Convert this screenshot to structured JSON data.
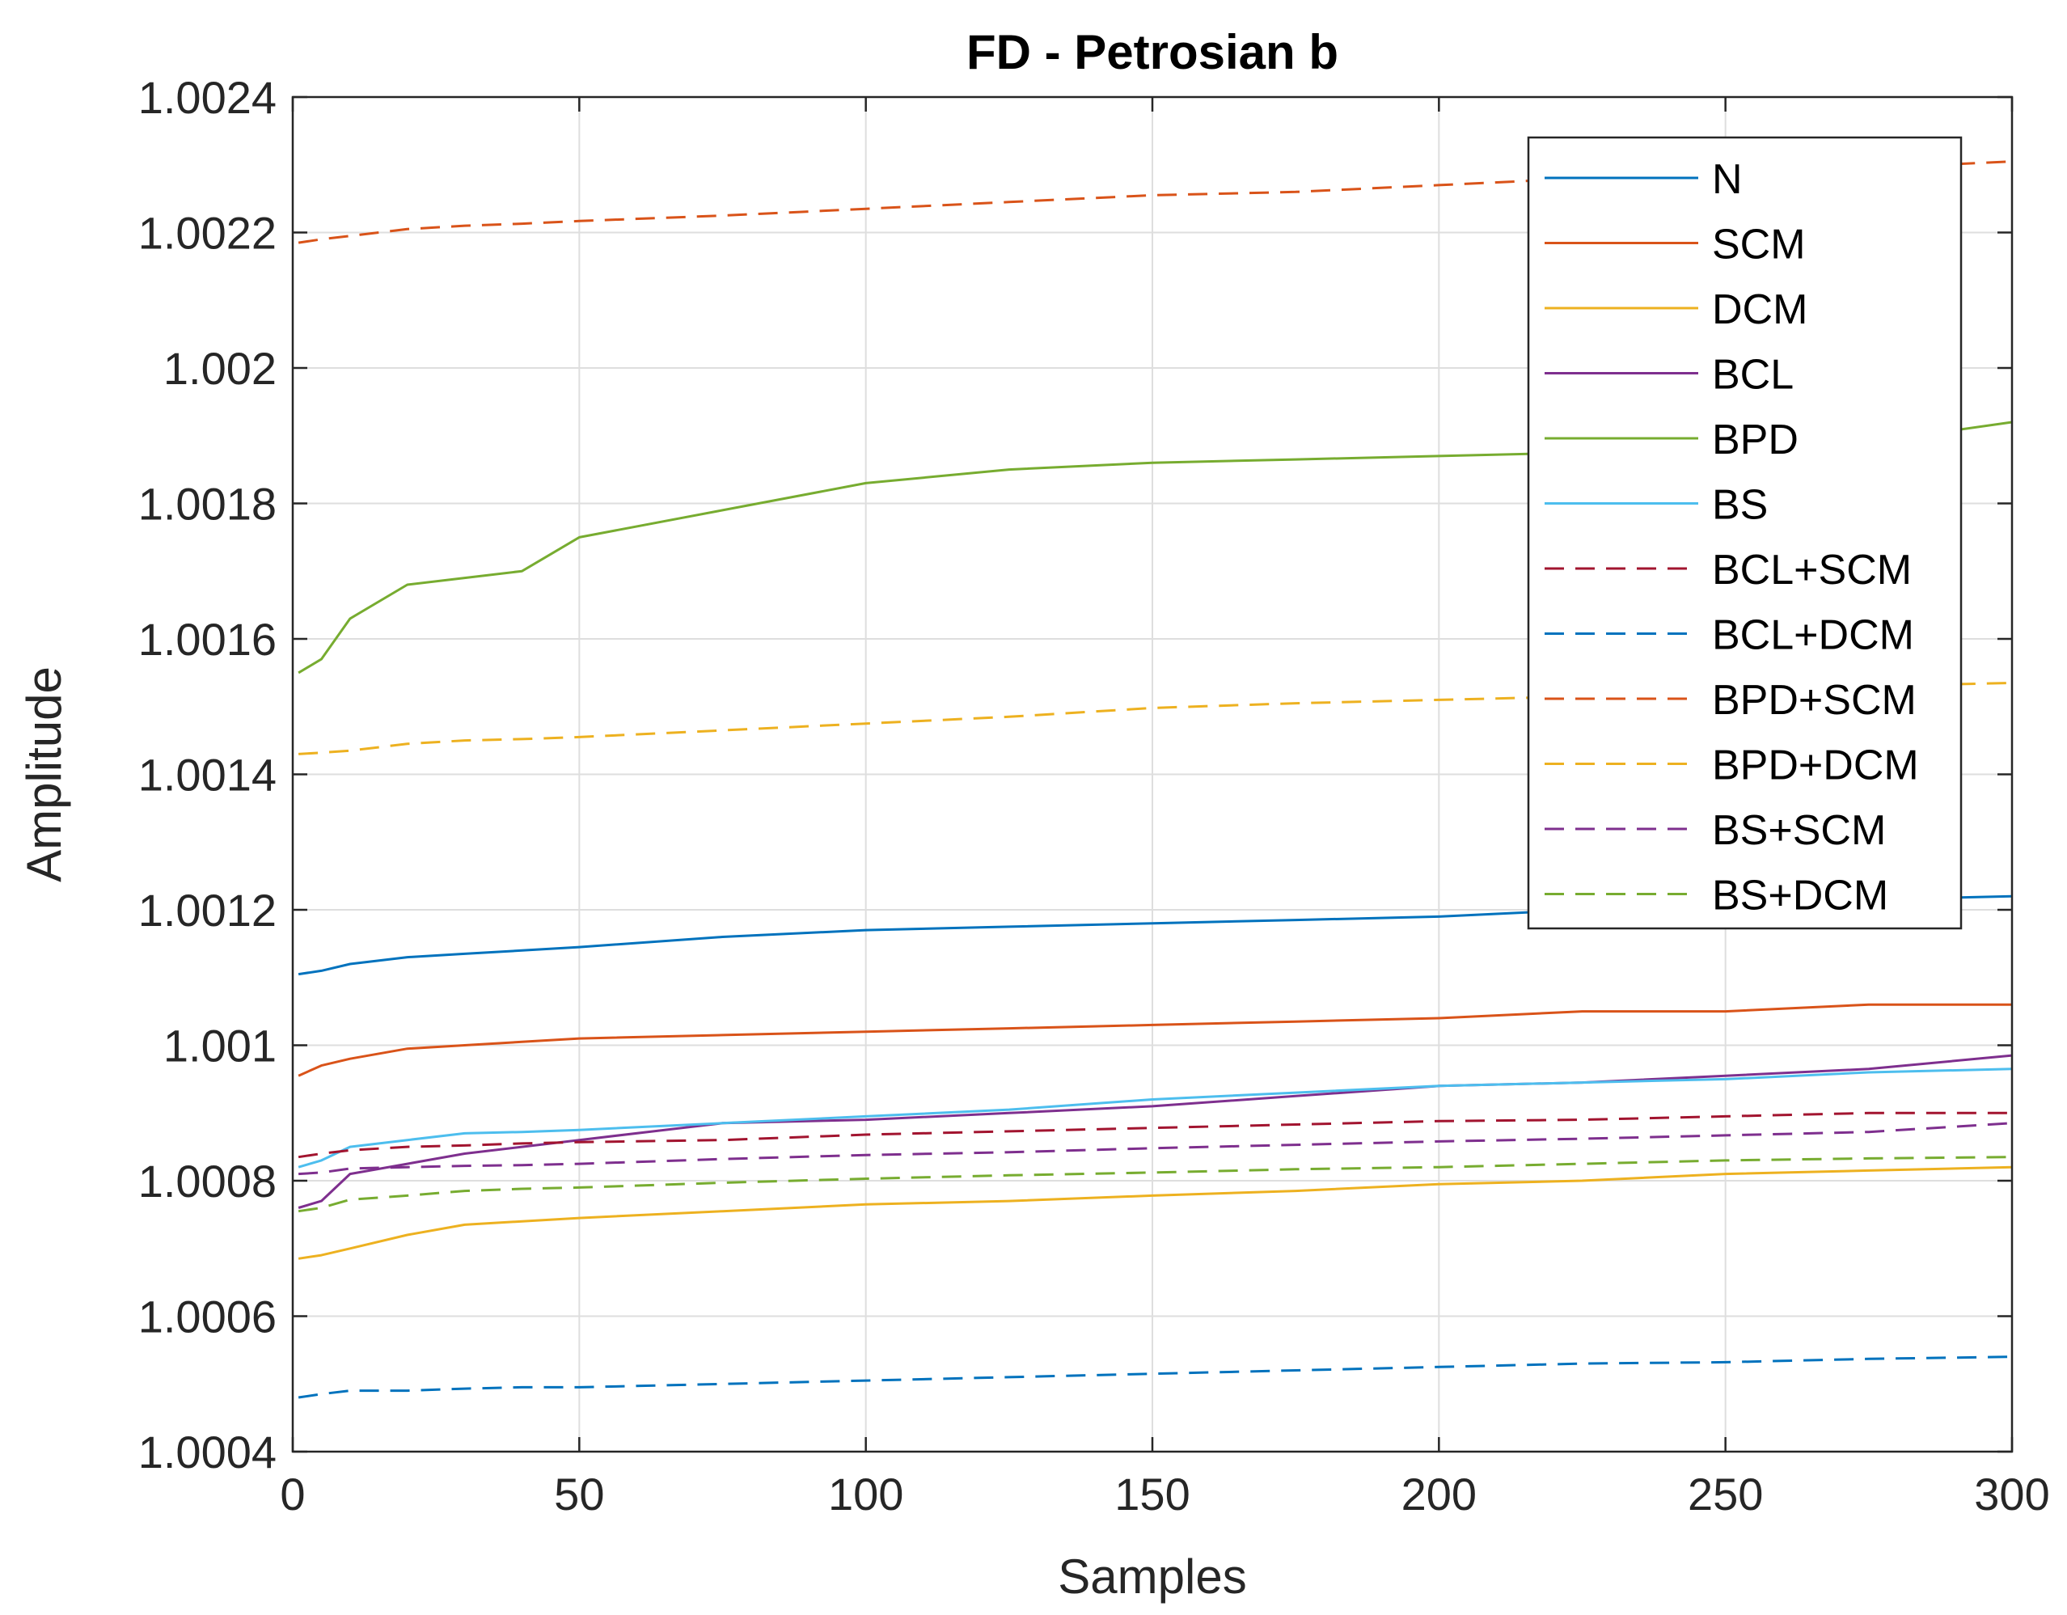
{
  "chart_data": {
    "type": "line",
    "title": "FD - Petrosian b",
    "xlabel": "Samples",
    "ylabel": "Amplitude",
    "xlim": [
      0,
      300
    ],
    "ylim": [
      1.0004,
      1.0024
    ],
    "grid": true,
    "legend_position": "top-right",
    "x_ticks": [
      "0",
      "50",
      "100",
      "150",
      "200",
      "250",
      "300"
    ],
    "y_ticks": [
      "1.0004",
      "1.0006",
      "1.0008",
      "1.001",
      "1.0012",
      "1.0014",
      "1.0016",
      "1.0018",
      "1.002",
      "1.0022",
      "1.0024"
    ],
    "x": [
      1,
      5,
      10,
      20,
      30,
      40,
      50,
      75,
      100,
      125,
      150,
      175,
      200,
      225,
      250,
      275,
      300
    ],
    "series": [
      {
        "name": "N",
        "color": "#0072BD",
        "style": "solid",
        "values": [
          1.001105,
          1.00111,
          1.00112,
          1.00113,
          1.001135,
          1.00114,
          1.001145,
          1.00116,
          1.00117,
          1.001175,
          1.00118,
          1.001185,
          1.00119,
          1.0012,
          1.00121,
          1.001215,
          1.00122
        ]
      },
      {
        "name": "SCM",
        "color": "#D95319",
        "style": "solid",
        "values": [
          1.000955,
          1.00097,
          1.00098,
          1.000995,
          1.001,
          1.001005,
          1.00101,
          1.001015,
          1.00102,
          1.001025,
          1.00103,
          1.001035,
          1.00104,
          1.00105,
          1.00105,
          1.00106,
          1.00106
        ]
      },
      {
        "name": "DCM",
        "color": "#EDB120",
        "style": "solid",
        "values": [
          1.000685,
          1.00069,
          1.0007,
          1.00072,
          1.000735,
          1.00074,
          1.000745,
          1.000755,
          1.000765,
          1.00077,
          1.000778,
          1.000785,
          1.000795,
          1.0008,
          1.00081,
          1.000815,
          1.00082
        ]
      },
      {
        "name": "BCL",
        "color": "#7E2F8E",
        "style": "solid",
        "values": [
          1.00076,
          1.00077,
          1.00081,
          1.000825,
          1.00084,
          1.00085,
          1.00086,
          1.000885,
          1.00089,
          1.0009,
          1.00091,
          1.000925,
          1.00094,
          1.000945,
          1.000955,
          1.000965,
          1.000985
        ]
      },
      {
        "name": "BPD",
        "color": "#77AC30",
        "style": "solid",
        "values": [
          1.00155,
          1.00157,
          1.00163,
          1.00168,
          1.00169,
          1.0017,
          1.00175,
          1.00179,
          1.00183,
          1.00185,
          1.00186,
          1.001865,
          1.00187,
          1.001875,
          1.00188,
          1.00189,
          1.00192
        ]
      },
      {
        "name": "BS",
        "color": "#4DBEEE",
        "style": "solid",
        "values": [
          1.00082,
          1.00083,
          1.00085,
          1.00086,
          1.00087,
          1.000872,
          1.000875,
          1.000885,
          1.000895,
          1.000905,
          1.00092,
          1.00093,
          1.00094,
          1.000945,
          1.00095,
          1.00096,
          1.000965
        ]
      },
      {
        "name": "BCL+SCM",
        "color": "#A2142F",
        "style": "dashed",
        "values": [
          1.000835,
          1.00084,
          1.000845,
          1.00085,
          1.000852,
          1.000855,
          1.000857,
          1.00086,
          1.000868,
          1.000873,
          1.000878,
          1.000883,
          1.000888,
          1.00089,
          1.000895,
          1.0009,
          1.0009
        ]
      },
      {
        "name": "BCL+DCM",
        "color": "#0072BD",
        "style": "dashed",
        "values": [
          1.00048,
          1.000485,
          1.00049,
          1.00049,
          1.000493,
          1.000495,
          1.000495,
          1.0005,
          1.000505,
          1.00051,
          1.000515,
          1.00052,
          1.000525,
          1.00053,
          1.000532,
          1.000537,
          1.00054
        ]
      },
      {
        "name": "BPD+SCM",
        "color": "#D95319",
        "style": "dashed",
        "values": [
          1.002185,
          1.00219,
          1.002195,
          1.002205,
          1.00221,
          1.002213,
          1.002217,
          1.002225,
          1.002235,
          1.002245,
          1.002255,
          1.00226,
          1.00227,
          1.00228,
          1.002285,
          1.002295,
          1.002305
        ]
      },
      {
        "name": "BPD+DCM",
        "color": "#EDB120",
        "style": "dashed",
        "values": [
          1.00143,
          1.001432,
          1.001435,
          1.001445,
          1.00145,
          1.001452,
          1.001455,
          1.001465,
          1.001475,
          1.001485,
          1.001498,
          1.001505,
          1.00151,
          1.001515,
          1.001518,
          1.00153,
          1.001535
        ]
      },
      {
        "name": "BS+SCM",
        "color": "#7E2F8E",
        "style": "dashed",
        "values": [
          1.00081,
          1.000812,
          1.000818,
          1.00082,
          1.000822,
          1.000823,
          1.000825,
          1.000832,
          1.000838,
          1.000842,
          1.000848,
          1.000853,
          1.000858,
          1.000862,
          1.000867,
          1.000872,
          1.000885
        ]
      },
      {
        "name": "BS+DCM",
        "color": "#77AC30",
        "style": "dashed",
        "values": [
          1.000755,
          1.00076,
          1.000772,
          1.000778,
          1.000785,
          1.000788,
          1.00079,
          1.000797,
          1.000803,
          1.000808,
          1.000812,
          1.000817,
          1.00082,
          1.000825,
          1.00083,
          1.000833,
          1.000835
        ]
      }
    ]
  }
}
